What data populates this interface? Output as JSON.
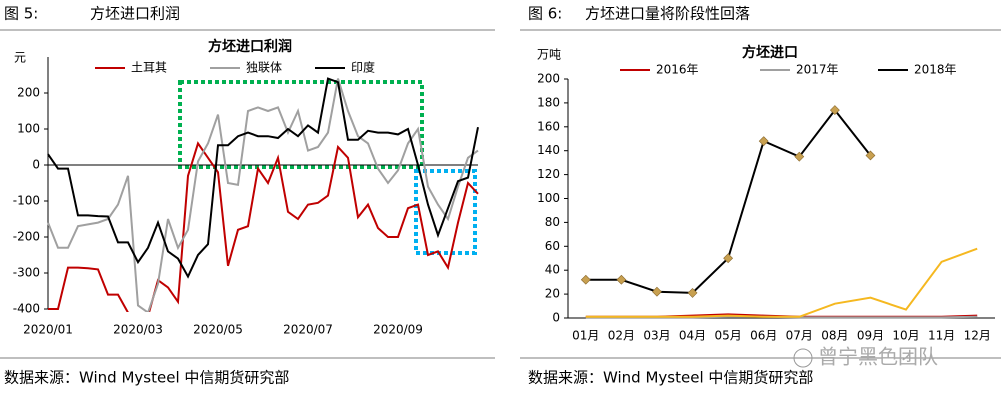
{
  "chart_data": [
    {
      "type": "line",
      "figure_label": "图 5:",
      "heading": "方坯进口利润",
      "title": "方坯进口利润",
      "y_label": "元",
      "source": "数据来源：Wind Mysteel  中信期货研究部",
      "categories": [
        "2020/01",
        null,
        null,
        null,
        null,
        null,
        null,
        null,
        null,
        "2020/03",
        null,
        null,
        null,
        null,
        null,
        null,
        null,
        "2020/05",
        null,
        null,
        null,
        null,
        null,
        null,
        null,
        null,
        "2020/07",
        null,
        null,
        null,
        null,
        null,
        null,
        null,
        null,
        "2020/09",
        null,
        null,
        null,
        null,
        null,
        null,
        null,
        null
      ],
      "ylim": [
        -400,
        300
      ],
      "yticks": [
        -400,
        -300,
        -200,
        -100,
        0,
        100,
        200
      ],
      "series": [
        {
          "name": "土耳其",
          "color": "#c00000",
          "values": [
            -400,
            -400,
            -285,
            -285,
            -287,
            -290,
            -360,
            -360,
            -410,
            -420,
            -420,
            -320,
            -340,
            -380,
            -30,
            60,
            20,
            -20,
            -280,
            -180,
            -170,
            -10,
            -50,
            20,
            -130,
            -150,
            -110,
            -105,
            -85,
            50,
            20,
            -145,
            -110,
            -175,
            -200,
            -200,
            -120,
            -110,
            -250,
            -240,
            -285,
            -160,
            -50,
            -80
          ]
        },
        {
          "name": "独联体",
          "color": "#a0a0a0",
          "values": [
            -160,
            -230,
            -230,
            -170,
            -165,
            -160,
            -150,
            -110,
            -30,
            -390,
            -410,
            -330,
            -150,
            -230,
            -180,
            10,
            60,
            140,
            -50,
            -55,
            150,
            160,
            150,
            160,
            90,
            150,
            40,
            50,
            90,
            240,
            150,
            80,
            60,
            -10,
            -50,
            -15,
            60,
            100,
            -60,
            -110,
            -150,
            -60,
            20,
            40
          ]
        },
        {
          "name": "印度",
          "color": "#000000",
          "values": [
            30,
            -10,
            -10,
            -140,
            -140,
            -142,
            -143,
            -215,
            -215,
            -270,
            -230,
            -160,
            -240,
            -260,
            -310,
            -250,
            -220,
            55,
            55,
            80,
            90,
            80,
            80,
            75,
            100,
            80,
            110,
            90,
            240,
            230,
            70,
            70,
            95,
            90,
            90,
            85,
            100,
            0,
            -110,
            -195,
            -120,
            -45,
            -35,
            105
          ]
        }
      ]
    },
    {
      "type": "line",
      "figure_label": "图 6:",
      "heading": "方坯进口量将阶段性回落",
      "title": "方坯进口",
      "y_label": "万吨",
      "source": "数据来源：Wind Mysteel 中信期货研究部",
      "categories": [
        "01月",
        "02月",
        "03月",
        "04月",
        "05月",
        "06月",
        "07月",
        "08月",
        "09月",
        "10月",
        "11月",
        "12月"
      ],
      "ylim": [
        0,
        200
      ],
      "yticks": [
        0,
        20,
        40,
        60,
        80,
        100,
        120,
        140,
        160,
        180,
        200
      ],
      "series": [
        {
          "name": "2016年",
          "color": "#c00000",
          "values": [
            1,
            1,
            1,
            2,
            3,
            2,
            1,
            1,
            1,
            1,
            1,
            2
          ]
        },
        {
          "name": "2017年",
          "color": "#a0a0a0",
          "values": [
            0.5,
            0.5,
            0.5,
            0.5,
            1,
            1,
            0.5,
            0.5,
            0.5,
            0.5,
            0.5,
            1
          ]
        },
        {
          "name": "2018年",
          "color": "#000000",
          "marker": "diamond",
          "marker_color": "#c8a050",
          "values": [
            32,
            32,
            22,
            21,
            50,
            148,
            135,
            174,
            136,
            null,
            null,
            null
          ]
        },
        {
          "color": "#f5b820",
          "values": [
            1,
            1,
            1,
            1,
            2,
            1,
            1,
            12,
            17,
            7,
            47,
            58
          ]
        }
      ]
    }
  ],
  "watermark": "曾宁黑色团队"
}
